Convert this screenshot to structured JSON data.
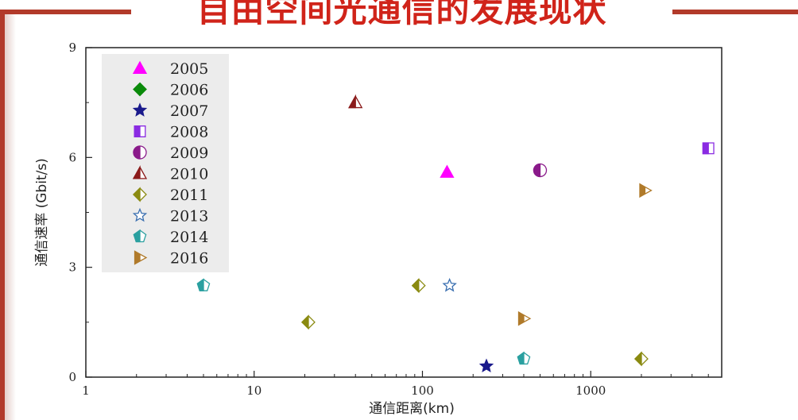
{
  "page": {
    "title": "自由空间光通信的发展现状",
    "frame_color": "#b23a2a",
    "title_color": "#d0241a"
  },
  "chart_data": {
    "type": "scatter",
    "title": "",
    "xlabel": "通信距离(km)",
    "ylabel": "通信速率 (Gbit/s)",
    "x_scale": "log",
    "xlim": [
      1,
      6000
    ],
    "ylim": [
      0,
      9
    ],
    "x_ticks": [
      {
        "value": 1,
        "label": "1"
      },
      {
        "value": 10,
        "label": "10"
      },
      {
        "value": 100,
        "label": "100"
      },
      {
        "value": 1000,
        "label": "1000"
      }
    ],
    "y_ticks": [
      {
        "value": 0,
        "label": "0"
      },
      {
        "value": 3,
        "label": "3"
      },
      {
        "value": 6,
        "label": "6"
      },
      {
        "value": 9,
        "label": "9"
      }
    ],
    "legend_position": "top-left",
    "grid": false,
    "series": [
      {
        "name": "2005",
        "marker": "triangle-up",
        "color": "#ff00ff",
        "points": [
          {
            "x": 140,
            "y": 5.6
          }
        ]
      },
      {
        "name": "2006",
        "marker": "diamond",
        "color": "#0a8a0a",
        "points": []
      },
      {
        "name": "2007",
        "marker": "star",
        "color": "#1a1a8c",
        "points": [
          {
            "x": 240,
            "y": 0.3
          }
        ]
      },
      {
        "name": "2008",
        "marker": "square-half",
        "color": "#8a2be2",
        "points": [
          {
            "x": 5000,
            "y": 6.25
          }
        ]
      },
      {
        "name": "2009",
        "marker": "circle-half",
        "color": "#8a1a8a",
        "points": [
          {
            "x": 500,
            "y": 5.65
          }
        ]
      },
      {
        "name": "2010",
        "marker": "triangle-half",
        "color": "#8b1a1a",
        "points": [
          {
            "x": 40,
            "y": 7.5
          }
        ]
      },
      {
        "name": "2011",
        "marker": "diamond-half",
        "color": "#8a8a10",
        "points": [
          {
            "x": 21,
            "y": 1.5
          },
          {
            "x": 95,
            "y": 2.5
          },
          {
            "x": 2000,
            "y": 0.5
          }
        ]
      },
      {
        "name": "2013",
        "marker": "star-open",
        "color": "#3a6fb0",
        "points": [
          {
            "x": 145,
            "y": 2.5
          }
        ]
      },
      {
        "name": "2014",
        "marker": "pentagon-half",
        "color": "#2aa0a0",
        "points": [
          {
            "x": 5,
            "y": 2.5
          },
          {
            "x": 400,
            "y": 0.5
          }
        ]
      },
      {
        "name": "2016",
        "marker": "triangle-right-half",
        "color": "#b07a2a",
        "points": [
          {
            "x": 400,
            "y": 1.6
          },
          {
            "x": 2100,
            "y": 5.1
          }
        ]
      }
    ]
  }
}
